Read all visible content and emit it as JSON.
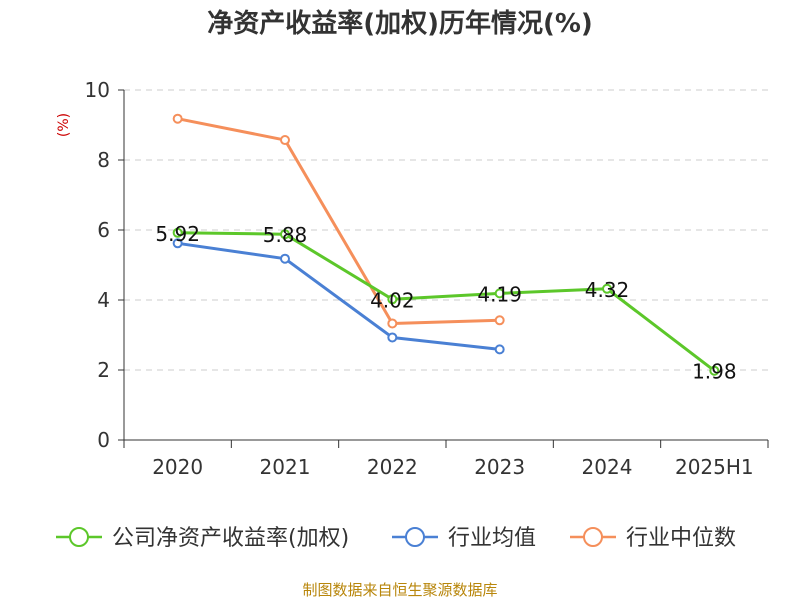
{
  "chart_data": {
    "type": "line",
    "title": "净资产收益率(加权)历年情况(%)",
    "ylabel": "(%)",
    "categories": [
      "2020",
      "2021",
      "2022",
      "2023",
      "2024",
      "2025H1"
    ],
    "ylim": [
      0,
      10
    ],
    "yticks": [
      0,
      2,
      4,
      6,
      8,
      10
    ],
    "grid": true,
    "legend_position": "bottom",
    "series": [
      {
        "name": "公司净资产收益率(加权)",
        "color": "#5cc72a",
        "values": [
          5.92,
          5.88,
          4.02,
          4.19,
          4.32,
          1.98
        ],
        "labels": [
          "5.92",
          "5.88",
          "4.02",
          "4.19",
          "4.32",
          "1.98"
        ]
      },
      {
        "name": "行业均值",
        "color": "#4a80d4",
        "values": [
          5.62,
          5.18,
          2.93,
          2.59,
          null,
          null
        ]
      },
      {
        "name": "行业中位数",
        "color": "#f58f5b",
        "values": [
          9.18,
          8.57,
          3.33,
          3.42,
          null,
          null
        ]
      }
    ]
  },
  "footer": {
    "source": "制图数据来自恒生聚源数据库"
  }
}
